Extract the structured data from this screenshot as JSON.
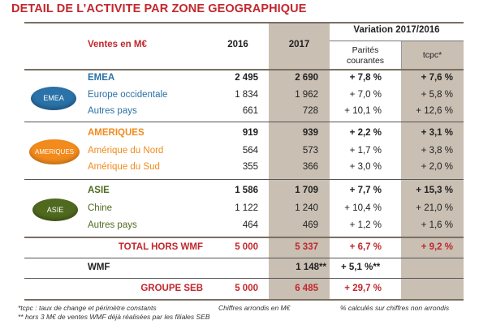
{
  "title": "DETAIL DE L’ACTIVITE PAR ZONE GEOGRAPHIQUE",
  "header": {
    "ventes": "Ventes en M€",
    "y2016": "2016",
    "y2017": "2017",
    "variation": "Variation 2017/2016",
    "parites_line1": "Parités",
    "parites_line2": "courantes",
    "tcpc": "tcpc*"
  },
  "regions": [
    {
      "badge": "EMEA",
      "rows": [
        {
          "label": "EMEA",
          "v2016": "2 495",
          "v2017": "2 690",
          "parites": "+ 7,8 %",
          "tcpc": "+ 7,6 %"
        },
        {
          "label": "Europe occidentale",
          "v2016": "1 834",
          "v2017": "1 962",
          "parites": "+ 7,0 %",
          "tcpc": "+ 5,8 %"
        },
        {
          "label": "Autres pays",
          "v2016": "661",
          "v2017": "728",
          "parites": "+ 10,1 %",
          "tcpc": "+ 12,6 %"
        }
      ]
    },
    {
      "badge": "AMERIQUES",
      "rows": [
        {
          "label": "AMERIQUES",
          "v2016": "919",
          "v2017": "939",
          "parites": "+ 2,2 %",
          "tcpc": "+ 3,1 %"
        },
        {
          "label": "Amérique du Nord",
          "v2016": "564",
          "v2017": "573",
          "parites": "+ 1,7 %",
          "tcpc": "+ 3,8 %"
        },
        {
          "label": "Amérique du Sud",
          "v2016": "355",
          "v2017": "366",
          "parites": "+ 3,0 %",
          "tcpc": "+ 2,0 %"
        }
      ]
    },
    {
      "badge": "ASIE",
      "rows": [
        {
          "label": "ASIE",
          "v2016": "1 586",
          "v2017": "1 709",
          "parites": "+ 7,7 %",
          "tcpc": "+ 15,3 %"
        },
        {
          "label": "Chine",
          "v2016": "1 122",
          "v2017": "1 240",
          "parites": "+ 10,4 %",
          "tcpc": "+ 21,0 %"
        },
        {
          "label": "Autres pays",
          "v2016": "464",
          "v2017": "469",
          "parites": "+ 1,2 %",
          "tcpc": "+ 1,6 %"
        }
      ]
    }
  ],
  "total_hors_wmf": {
    "label": "TOTAL HORS WMF",
    "v2016": "5 000",
    "v2017": "5 337",
    "parites": "+ 6,7 %",
    "tcpc": "+ 9,2 %"
  },
  "wmf": {
    "label": "WMF",
    "v2017": "1 148**",
    "parites": "+ 5,1 %**"
  },
  "groupe_seb": {
    "label": "GROUPE SEB",
    "v2016": "5 000",
    "v2017": "6 485",
    "parites": "+ 29,7 %"
  },
  "footnotes": {
    "tcpc_note": "*tcpc : taux de change et périmètre constants",
    "arrondis": "Chiffres arrondis en M€",
    "calcules": "% calculés sur chiffres non arrondis",
    "wmf_note": "** hors 3 M€ de ventes WMF déjà réalisées par les filiales SEB"
  },
  "colors": {
    "title_red": "#c1272d",
    "emea_blue": "#2a72a8",
    "ameriques_orange": "#f28a1c",
    "asie_green": "#4f6a1f",
    "shade": "#c9bfb3"
  }
}
